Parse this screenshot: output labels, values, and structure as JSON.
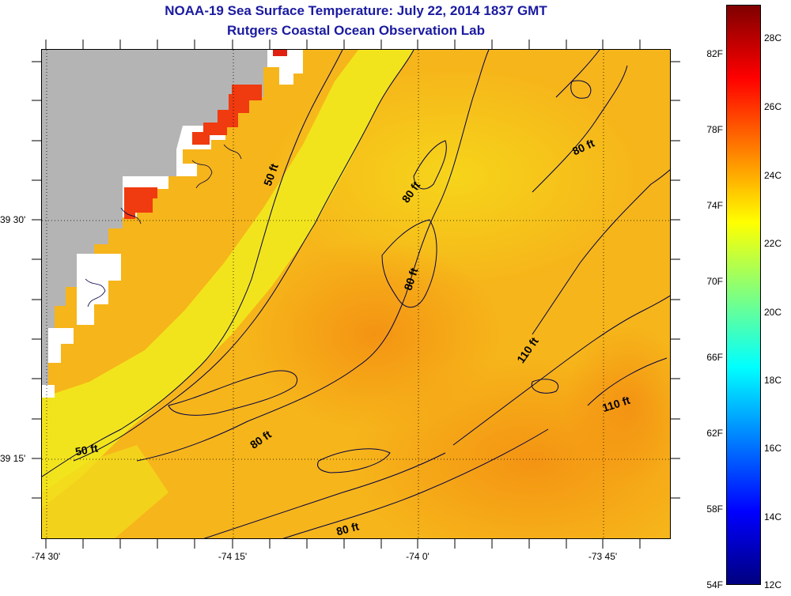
{
  "title": {
    "line1": "NOAA-19 Sea Surface Temperature:  July 22, 2014 1837 GMT",
    "line2": "Rutgers Coastal Ocean Observation Lab"
  },
  "axes": {
    "lat_labels": [
      "39 30'",
      "39 15'"
    ],
    "lon_labels": [
      "-74 30'",
      "-74 15'",
      "-74 0'",
      "-73 45'"
    ]
  },
  "colorbar": {
    "fahrenheit_labels": [
      "82F",
      "78F",
      "74F",
      "70F",
      "66F",
      "62F",
      "58F",
      "54F"
    ],
    "celsius_labels": [
      "28C",
      "26C",
      "24C",
      "22C",
      "20C",
      "18C",
      "16C",
      "14C",
      "12C"
    ],
    "colors": [
      "#00007f",
      "#0000ff",
      "#007fff",
      "#00ffff",
      "#7fff7f",
      "#ffff00",
      "#ff7f00",
      "#ff0000",
      "#7f0000"
    ]
  },
  "depth_contours": {
    "labels": [
      "50 ft",
      "80 ft",
      "80 ft",
      "80 ft",
      "110 ft",
      "110 ft",
      "50 ft",
      "80 ft",
      "80 ft"
    ]
  },
  "map_colors": {
    "land": "#b4b4b4",
    "no_data": "#ffffff",
    "warm_patch": "#f03a10",
    "ocean_base": "#f6b51a",
    "nearshore": "#f2e41c",
    "contour": "#000044"
  }
}
